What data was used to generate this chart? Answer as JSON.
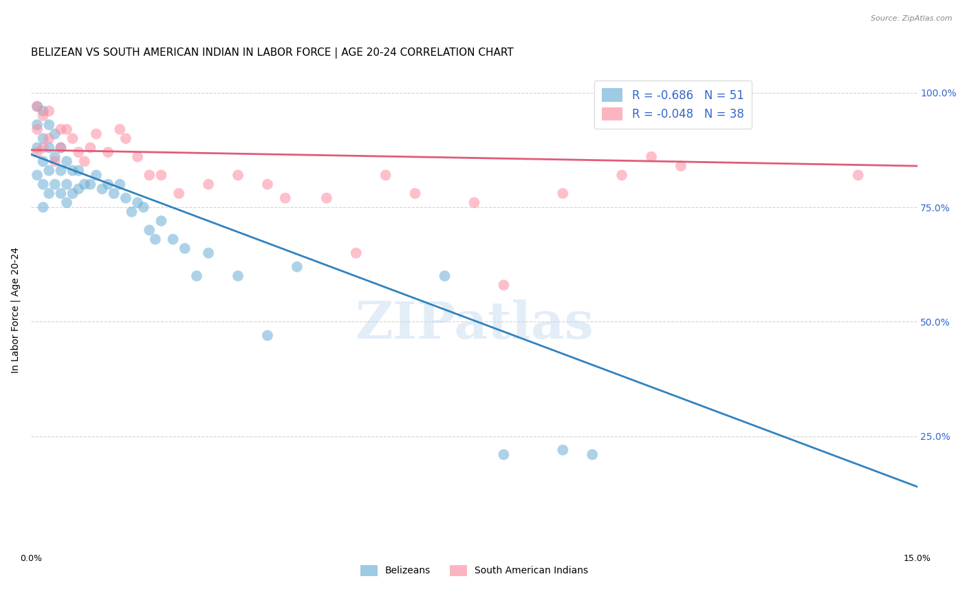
{
  "title": "BELIZEAN VS SOUTH AMERICAN INDIAN IN LABOR FORCE | AGE 20-24 CORRELATION CHART",
  "source": "Source: ZipAtlas.com",
  "ylabel": "In Labor Force | Age 20-24",
  "xmin": 0.0,
  "xmax": 0.15,
  "ymin": 0.0,
  "ymax": 1.05,
  "belizean_R": -0.686,
  "belizean_N": 51,
  "sa_indian_R": -0.048,
  "sa_indian_N": 38,
  "belizean_color": "#6baed6",
  "sa_indian_color": "#fd8da0",
  "blue_line_color": "#3182bd",
  "pink_line_color": "#e05c7a",
  "legend_text_color": "#3366cc",
  "watermark": "ZIPatlas",
  "belizean_x": [
    0.001,
    0.001,
    0.001,
    0.001,
    0.002,
    0.002,
    0.002,
    0.002,
    0.002,
    0.003,
    0.003,
    0.003,
    0.003,
    0.004,
    0.004,
    0.004,
    0.005,
    0.005,
    0.005,
    0.006,
    0.006,
    0.006,
    0.007,
    0.007,
    0.008,
    0.008,
    0.009,
    0.01,
    0.011,
    0.012,
    0.013,
    0.014,
    0.015,
    0.016,
    0.017,
    0.018,
    0.019,
    0.02,
    0.021,
    0.022,
    0.024,
    0.026,
    0.028,
    0.03,
    0.035,
    0.04,
    0.045,
    0.07,
    0.08,
    0.09,
    0.095
  ],
  "belizean_y": [
    0.97,
    0.93,
    0.88,
    0.82,
    0.96,
    0.9,
    0.85,
    0.8,
    0.75,
    0.93,
    0.88,
    0.83,
    0.78,
    0.91,
    0.86,
    0.8,
    0.88,
    0.83,
    0.78,
    0.85,
    0.8,
    0.76,
    0.83,
    0.78,
    0.83,
    0.79,
    0.8,
    0.8,
    0.82,
    0.79,
    0.8,
    0.78,
    0.8,
    0.77,
    0.74,
    0.76,
    0.75,
    0.7,
    0.68,
    0.72,
    0.68,
    0.66,
    0.6,
    0.65,
    0.6,
    0.47,
    0.62,
    0.6,
    0.21,
    0.22,
    0.21
  ],
  "sa_x": [
    0.001,
    0.001,
    0.001,
    0.002,
    0.002,
    0.003,
    0.003,
    0.004,
    0.005,
    0.005,
    0.006,
    0.007,
    0.008,
    0.009,
    0.01,
    0.011,
    0.013,
    0.015,
    0.016,
    0.018,
    0.02,
    0.022,
    0.025,
    0.03,
    0.035,
    0.04,
    0.043,
    0.05,
    0.055,
    0.06,
    0.065,
    0.075,
    0.08,
    0.09,
    0.1,
    0.105,
    0.11,
    0.14
  ],
  "sa_y": [
    0.97,
    0.92,
    0.87,
    0.95,
    0.88,
    0.96,
    0.9,
    0.85,
    0.92,
    0.88,
    0.92,
    0.9,
    0.87,
    0.85,
    0.88,
    0.91,
    0.87,
    0.92,
    0.9,
    0.86,
    0.82,
    0.82,
    0.78,
    0.8,
    0.82,
    0.8,
    0.77,
    0.77,
    0.65,
    0.82,
    0.78,
    0.76,
    0.58,
    0.78,
    0.82,
    0.86,
    0.84,
    0.82
  ],
  "bg_color": "#ffffff",
  "grid_color": "#c8c8c8",
  "title_fontsize": 11,
  "axis_label_fontsize": 10,
  "tick_fontsize": 9,
  "right_tick_color": "#3366cc",
  "blue_line_x0": 0.0,
  "blue_line_y0": 0.865,
  "blue_line_x1": 0.15,
  "blue_line_y1": 0.14,
  "pink_line_x0": 0.0,
  "pink_line_y0": 0.875,
  "pink_line_x1": 0.15,
  "pink_line_y1": 0.84
}
